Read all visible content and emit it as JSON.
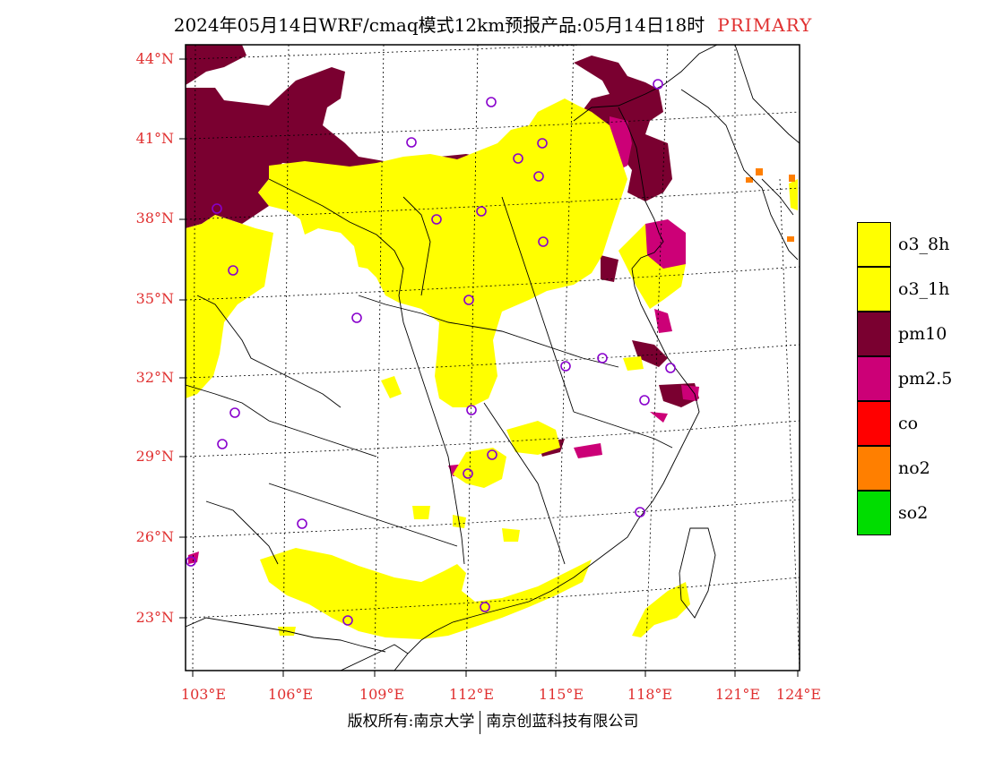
{
  "title": {
    "main": "2024年05月14日WRF/cmaq模式12km预报产品:05月14日18时",
    "tag": "PRIMARY"
  },
  "map": {
    "lat_labels": [
      "44°N",
      "41°N",
      "38°N",
      "35°N",
      "32°N",
      "29°N",
      "26°N",
      "23°N"
    ],
    "lon_labels": [
      "103°E",
      "106°E",
      "109°E",
      "112°E",
      "115°E",
      "118°E",
      "121°E",
      "124°E"
    ],
    "colors": {
      "o3_8h": "#ffff00",
      "o3_1h": "#ffff00",
      "pm10": "#7a0030",
      "pm2_5": "#cc0077",
      "co": "#ff0000",
      "no2": "#ff7f00",
      "so2": "#00dd00",
      "station_marker": "#8800cc",
      "axis_label": "#e03030"
    },
    "station_icon": "circle-marker-icon"
  },
  "legend": {
    "items": [
      {
        "label": "o3_8h",
        "color": "#ffff00"
      },
      {
        "label": "o3_1h",
        "color": "#ffff00"
      },
      {
        "label": "pm10",
        "color": "#7a0030"
      },
      {
        "label": "pm2.5",
        "color": "#cc0077"
      },
      {
        "label": "co",
        "color": "#ff0000"
      },
      {
        "label": "no2",
        "color": "#ff7f00"
      },
      {
        "label": "so2",
        "color": "#00dd00"
      }
    ]
  },
  "footer": {
    "left": "版权所有:南京大学",
    "right": "南京创蓝科技有限公司"
  }
}
